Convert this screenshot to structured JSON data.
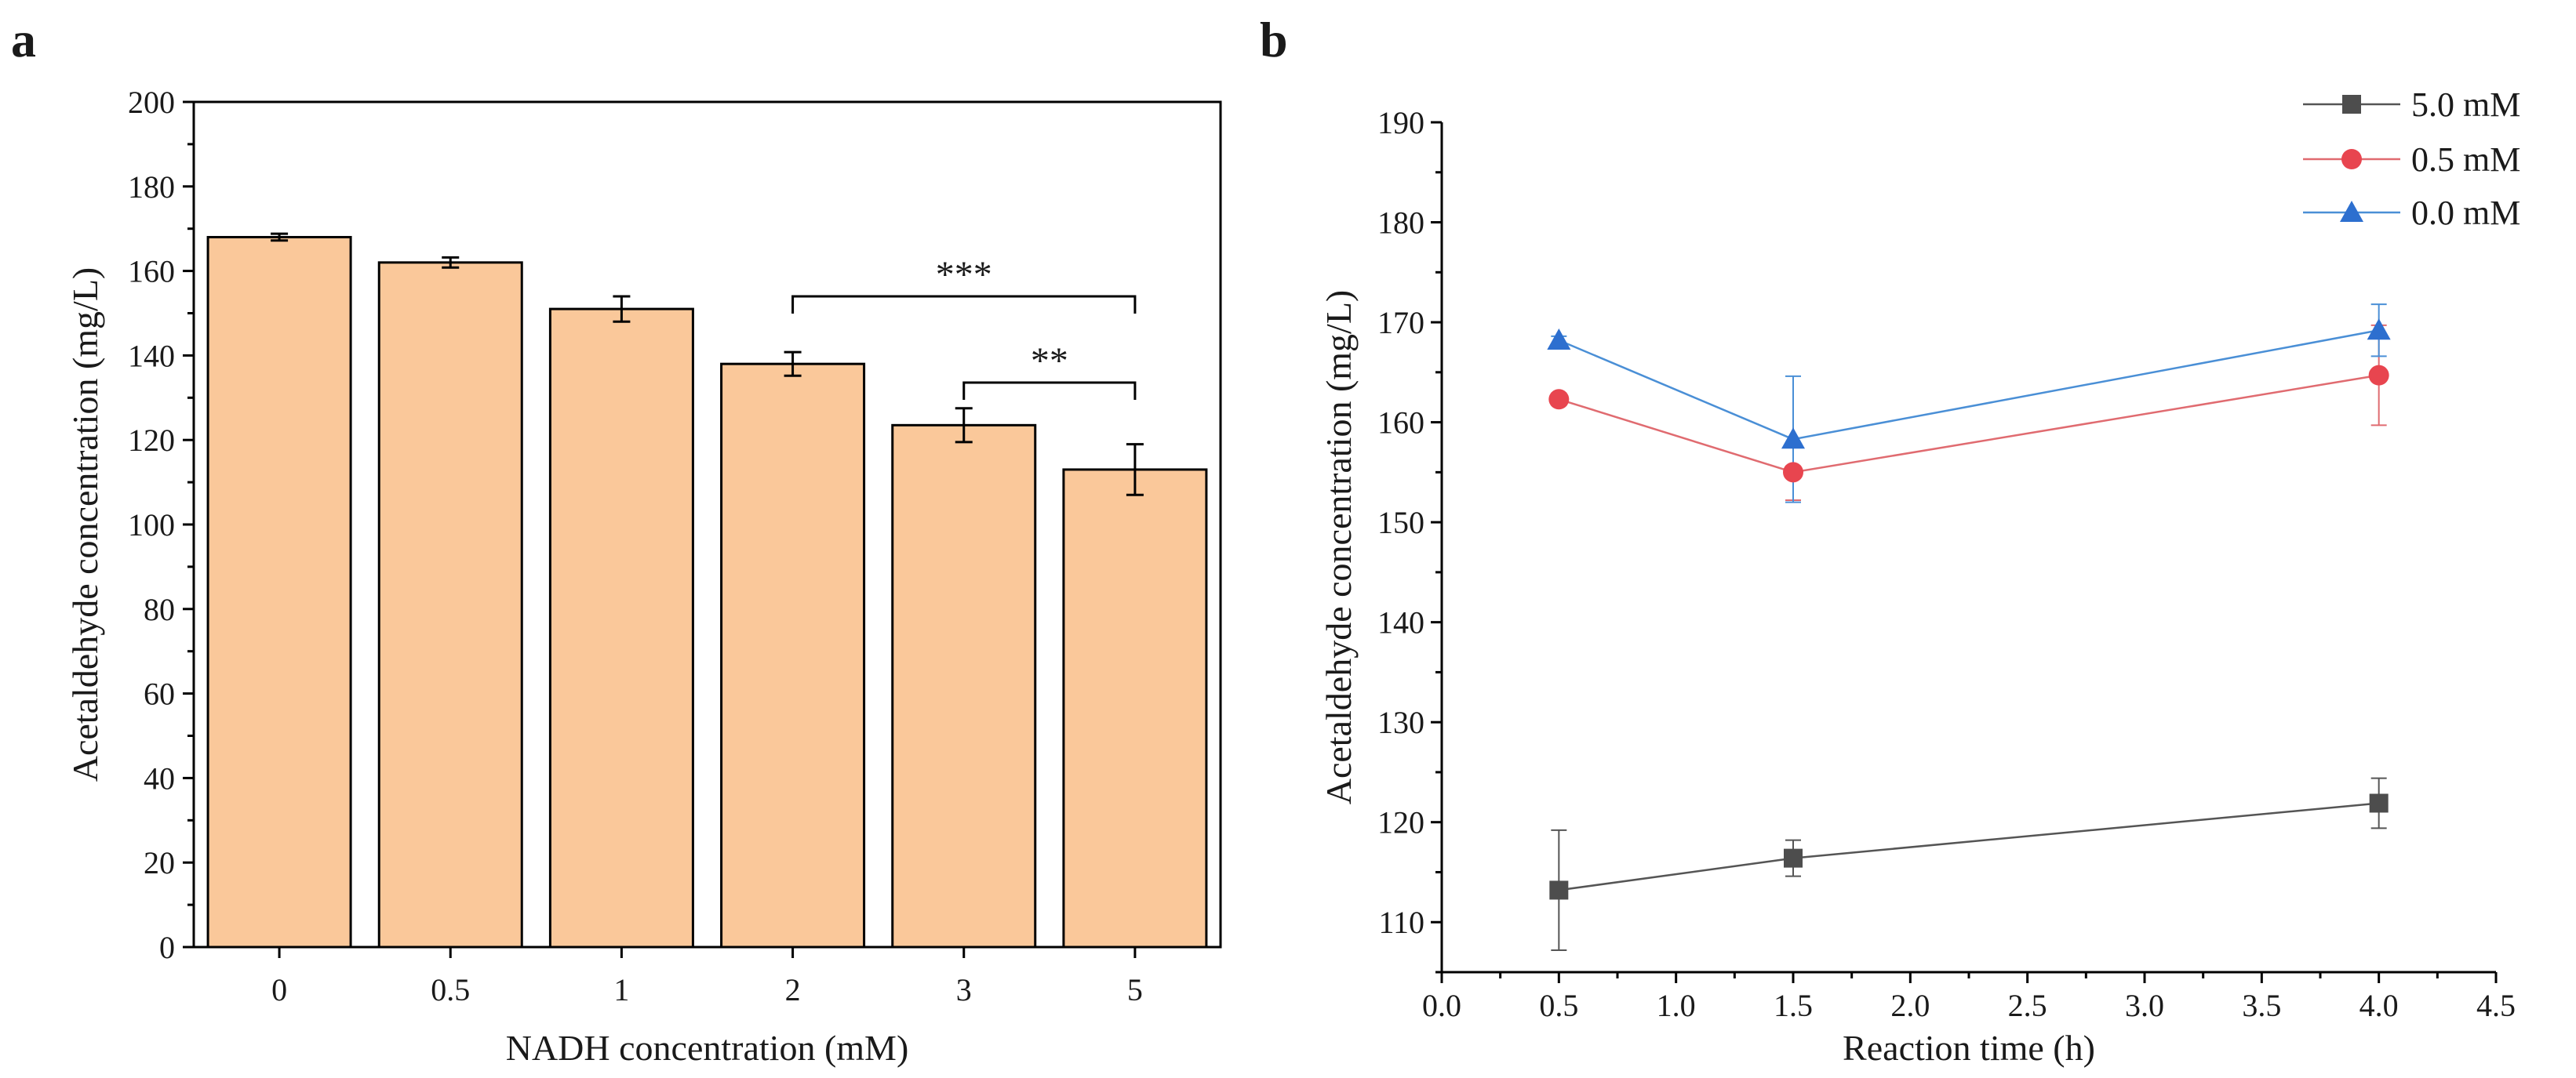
{
  "figure": {
    "panel_a_letter": "a",
    "panel_b_letter": "b"
  },
  "chart_data": [
    {
      "type": "bar",
      "panel": "a",
      "title": "",
      "xlabel": "NADH concentration (mM)",
      "ylabel": "Acetaldehyde concentration (mg/L)",
      "categories": [
        "0",
        "0.5",
        "1",
        "2",
        "3",
        "5"
      ],
      "values": [
        168,
        162,
        151,
        138,
        123.5,
        113
      ],
      "errors": [
        0.8,
        1.2,
        3,
        2.8,
        4,
        6
      ],
      "ylim": [
        0,
        200
      ],
      "yticks": [
        0,
        20,
        40,
        60,
        80,
        100,
        120,
        140,
        160,
        180,
        200
      ],
      "bar_color": "#fac89a",
      "significance": [
        {
          "from": "2",
          "to": "5",
          "label": "***"
        },
        {
          "from": "3",
          "to": "5",
          "label": "**"
        }
      ]
    },
    {
      "type": "line",
      "panel": "b",
      "title": "",
      "xlabel": "Reaction time (h)",
      "ylabel": "Acetaldehyde concentration (mg/L)",
      "xlim": [
        0,
        4.5
      ],
      "ylim": [
        105,
        190
      ],
      "xticks": [
        "0.0",
        "0.5",
        "1.0",
        "1.5",
        "2.0",
        "2.5",
        "3.0",
        "3.5",
        "4.0",
        "4.5"
      ],
      "yticks": [
        110,
        120,
        130,
        140,
        150,
        160,
        170,
        180,
        190
      ],
      "x": [
        0.5,
        1.5,
        4.0
      ],
      "series": [
        {
          "name": "5.0  mM",
          "marker": "square",
          "color": "#4d4d4d",
          "line_color": "#555555",
          "values": [
            113.2,
            116.4,
            121.9
          ],
          "errors": [
            6,
            1.8,
            2.5
          ]
        },
        {
          "name": "0.5  mM",
          "marker": "circle",
          "color": "#e8454f",
          "line_color": "#e06b70",
          "values": [
            162.3,
            155,
            164.7
          ],
          "errors": [
            0.6,
            2.8,
            5
          ]
        },
        {
          "name": "0.0  mM",
          "marker": "triangle",
          "color": "#2d6fcf",
          "line_color": "#4a8fd6",
          "values": [
            168.2,
            158.3,
            169.2
          ],
          "errors": [
            0.4,
            6.3,
            2.6
          ]
        }
      ],
      "legend": "top-right"
    }
  ]
}
